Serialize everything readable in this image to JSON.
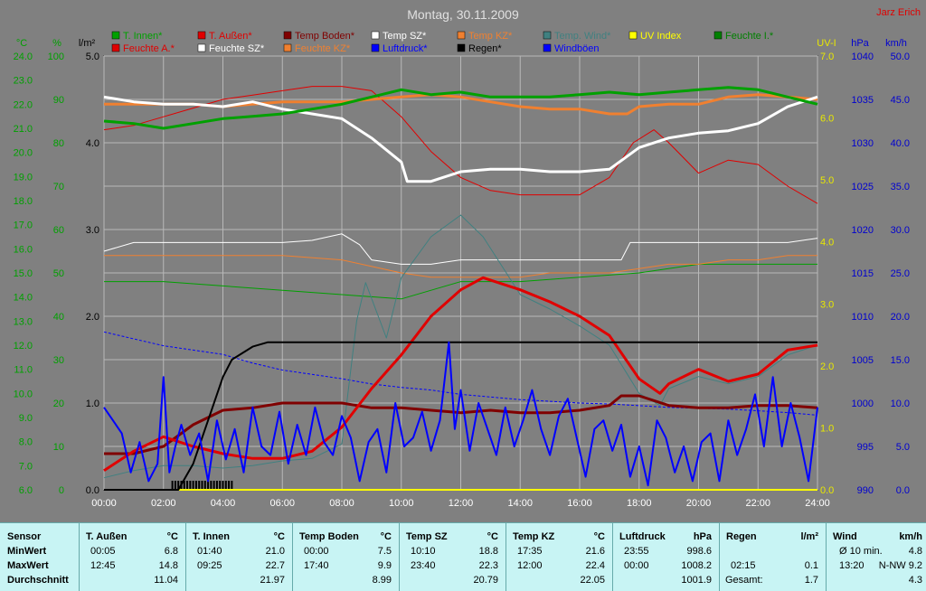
{
  "chart_data": {
    "type": "line",
    "title": "Montag, 30.11.2009",
    "author": "Jarz Erich",
    "colors": {
      "bg": "#808080",
      "grid": "#b8b8b8"
    },
    "axes": {
      "temp": {
        "unit": "°C",
        "min": 6.0,
        "max": 24.0,
        "ticks": [
          "6.0",
          "7.0",
          "8.0",
          "9.0",
          "10.0",
          "11.0",
          "12.0",
          "13.0",
          "14.0",
          "15.0",
          "16.0",
          "17.0",
          "18.0",
          "19.0",
          "20.0",
          "21.0",
          "22.0",
          "23.0",
          "24.0"
        ],
        "color": "#00a000"
      },
      "hum": {
        "unit": "%",
        "min": 0,
        "max": 100,
        "ticks": [
          "0",
          "10",
          "20",
          "30",
          "40",
          "50",
          "60",
          "70",
          "80",
          "90",
          "100"
        ],
        "color": "#00a000"
      },
      "rain": {
        "unit": "l/m²",
        "min": 0,
        "max": 5,
        "ticks": [
          "0.0",
          "1.0",
          "2.0",
          "3.0",
          "4.0",
          "5.0"
        ],
        "color": "#000000"
      },
      "uv": {
        "unit": "UV-I",
        "min": 0,
        "max": 7,
        "ticks": [
          "0.0",
          "1.0",
          "2.0",
          "3.0",
          "4.0",
          "5.0",
          "6.0",
          "7.0"
        ],
        "color": "#e8e800"
      },
      "press": {
        "unit": "hPa",
        "min": 990,
        "max": 1040,
        "ticks": [
          "990",
          "995",
          "1000",
          "1005",
          "1010",
          "1015",
          "1020",
          "1025",
          "1030",
          "1035",
          "1040"
        ],
        "color": "#0000d0"
      },
      "wind": {
        "unit": "km/h",
        "min": 0,
        "max": 50,
        "ticks": [
          "0.0",
          "5.0",
          "10.0",
          "15.0",
          "20.0",
          "25.0",
          "30.0",
          "35.0",
          "40.0",
          "45.0",
          "50.0"
        ],
        "color": "#0000d0"
      },
      "x_ticks": [
        "00:00",
        "02:00",
        "04:00",
        "06:00",
        "08:00",
        "10:00",
        "12:00",
        "14:00",
        "16:00",
        "18:00",
        "20:00",
        "22:00",
        "24:00"
      ]
    },
    "legend": [
      {
        "name": "T. Innen*",
        "color": "#00a000"
      },
      {
        "name": "T. Außen*",
        "color": "#e00000"
      },
      {
        "name": "Temp Boden*",
        "color": "#800000"
      },
      {
        "name": "Temp SZ*",
        "color": "#ffffff"
      },
      {
        "name": "Temp KZ*",
        "color": "#f08030"
      },
      {
        "name": "Temp. Wind*",
        "color": "#408080"
      },
      {
        "name": "UV Index",
        "color": "#ffff00"
      },
      {
        "name": "Feuchte I.*",
        "color": "#008000"
      },
      {
        "name": "Feuchte A.*",
        "color": "#e00000"
      },
      {
        "name": "Feuchte SZ*",
        "color": "#ffffff"
      },
      {
        "name": "Feuchte KZ*",
        "color": "#f08030"
      },
      {
        "name": "Luftdruck*",
        "color": "#0000ff"
      },
      {
        "name": "Regen*",
        "color": "#000000"
      },
      {
        "name": "Windböen",
        "color": "#0000ff"
      }
    ],
    "series": [
      {
        "name": "T. Innen*",
        "axis": "temp",
        "color": "#00a000",
        "width": 3,
        "x": [
          0,
          1,
          2,
          3,
          4,
          5,
          6,
          7,
          8,
          9,
          10,
          11,
          12,
          13,
          14,
          15,
          16,
          17,
          18,
          19,
          20,
          21,
          22,
          23,
          24
        ],
        "y": [
          21.3,
          21.2,
          21.0,
          21.2,
          21.4,
          21.5,
          21.6,
          21.8,
          22.0,
          22.3,
          22.6,
          22.4,
          22.5,
          22.3,
          22.3,
          22.3,
          22.4,
          22.5,
          22.4,
          22.5,
          22.6,
          22.7,
          22.6,
          22.3,
          22.0
        ]
      },
      {
        "name": "T. Außen*",
        "axis": "temp",
        "color": "#e00000",
        "width": 3,
        "x": [
          0,
          1,
          2,
          3,
          4,
          5,
          6,
          7,
          8,
          9,
          10,
          11,
          12,
          12.75,
          14,
          15,
          16,
          17,
          18,
          18.7,
          19,
          20,
          21,
          22,
          23,
          24
        ],
        "y": [
          6.8,
          7.6,
          8.2,
          7.8,
          7.5,
          7.3,
          7.3,
          7.6,
          8.6,
          10.2,
          11.6,
          13.2,
          14.3,
          14.8,
          14.3,
          13.8,
          13.2,
          12.4,
          10.6,
          10.0,
          10.4,
          11.0,
          10.5,
          10.8,
          11.8,
          12.0
        ]
      },
      {
        "name": "Temp Boden*",
        "axis": "temp",
        "color": "#800000",
        "width": 3,
        "x": [
          0,
          1,
          2,
          3,
          4,
          5,
          6,
          7,
          8,
          9,
          10,
          11,
          12,
          13,
          14,
          15,
          16,
          17,
          17.4,
          18,
          19,
          20,
          21,
          22,
          23,
          24
        ],
        "y": [
          7.5,
          7.5,
          7.8,
          8.7,
          9.3,
          9.4,
          9.6,
          9.6,
          9.6,
          9.4,
          9.4,
          9.3,
          9.2,
          9.3,
          9.2,
          9.2,
          9.3,
          9.5,
          9.9,
          9.9,
          9.5,
          9.4,
          9.4,
          9.5,
          9.5,
          9.4
        ]
      },
      {
        "name": "Temp SZ*",
        "axis": "temp",
        "color": "#ffffff",
        "width": 3,
        "x": [
          0,
          1,
          2,
          3,
          4,
          5,
          6,
          7,
          8,
          9,
          10,
          10.2,
          11,
          12,
          13,
          14,
          15,
          16,
          17,
          18,
          19,
          20,
          21,
          22,
          23,
          24
        ],
        "y": [
          22.3,
          22.1,
          22.0,
          22.0,
          21.9,
          22.1,
          21.8,
          21.6,
          21.4,
          20.6,
          19.6,
          18.8,
          18.8,
          19.2,
          19.3,
          19.3,
          19.2,
          19.2,
          19.3,
          20.2,
          20.6,
          20.8,
          20.9,
          21.2,
          21.9,
          22.3
        ]
      },
      {
        "name": "Temp KZ*",
        "axis": "temp",
        "color": "#f08030",
        "width": 3,
        "x": [
          0,
          1,
          2,
          3,
          4,
          5,
          6,
          7,
          8,
          9,
          10,
          11,
          12,
          13,
          14,
          15,
          16,
          17,
          17.6,
          18,
          19,
          20,
          21,
          22,
          23,
          24
        ],
        "y": [
          22.0,
          22.0,
          22.0,
          22.0,
          21.9,
          22.0,
          22.1,
          22.1,
          22.1,
          22.2,
          22.3,
          22.4,
          22.3,
          22.1,
          21.9,
          21.8,
          21.8,
          21.6,
          21.6,
          21.9,
          22.0,
          22.0,
          22.3,
          22.4,
          22.3,
          22.2
        ]
      },
      {
        "name": "Temp. Wind*",
        "axis": "temp",
        "color": "#408080",
        "width": 1,
        "x": [
          0,
          1,
          2,
          3,
          4,
          5,
          6,
          7,
          8,
          8.5,
          8.8,
          9.5,
          10,
          11,
          12,
          12.75,
          14,
          15,
          16,
          17,
          18,
          18.7,
          19,
          20,
          21,
          22,
          23,
          24
        ],
        "y": [
          6.5,
          6.8,
          7.0,
          7.0,
          6.9,
          7.0,
          7.2,
          7.3,
          7.9,
          13.0,
          14.6,
          12.3,
          14.8,
          16.5,
          17.4,
          16.5,
          14.1,
          13.5,
          12.8,
          12.0,
          10.0,
          9.5,
          10.2,
          10.7,
          10.4,
          10.7,
          11.6,
          12.0
        ]
      },
      {
        "name": "Feuchte I.*",
        "axis": "hum",
        "color": "#00a000",
        "width": 1,
        "x": [
          0,
          2,
          4,
          6,
          8,
          10,
          12,
          14,
          16,
          18,
          20,
          22,
          24
        ],
        "y": [
          48,
          48,
          47,
          46,
          45,
          44,
          48,
          48,
          49,
          50,
          52,
          52,
          52
        ]
      },
      {
        "name": "Feuchte A.*",
        "axis": "hum",
        "color": "#e00000",
        "width": 1,
        "x": [
          0,
          1,
          2,
          3,
          4,
          5,
          6,
          7,
          8,
          9,
          10,
          11,
          12,
          13,
          14,
          15,
          16,
          17,
          17.8,
          18.5,
          19,
          20,
          21,
          22,
          23,
          24
        ],
        "y": [
          83,
          84,
          86,
          88,
          90,
          91,
          92,
          93,
          93,
          92,
          86,
          78,
          72,
          69,
          68,
          68,
          68,
          72,
          80,
          83,
          80,
          73,
          76,
          75,
          70,
          66
        ]
      },
      {
        "name": "Feuchte SZ*",
        "axis": "hum",
        "color": "#ffffff",
        "width": 1,
        "x": [
          0,
          1,
          2,
          3,
          4,
          5,
          6,
          7,
          8,
          8.6,
          9,
          10,
          11,
          12,
          13,
          14,
          15,
          16,
          17,
          17.4,
          17.7,
          18,
          19,
          20,
          21,
          22,
          23,
          24
        ],
        "y": [
          55,
          57,
          57,
          57,
          57,
          57,
          57,
          57.5,
          59,
          56.5,
          53,
          52,
          52,
          53,
          53,
          53,
          53,
          53,
          53,
          53,
          57,
          57,
          57,
          57,
          57,
          57,
          57,
          58
        ]
      },
      {
        "name": "Feuchte KZ*",
        "axis": "hum",
        "color": "#f08030",
        "width": 1,
        "x": [
          0,
          2,
          4,
          6,
          8,
          10,
          11,
          12,
          13,
          14,
          15,
          16,
          17,
          18,
          19,
          20,
          21,
          22,
          23,
          24
        ],
        "y": [
          54,
          54,
          54,
          54,
          53,
          50,
          49,
          49,
          49,
          49,
          50,
          50,
          50,
          51,
          52,
          52,
          53,
          53,
          54,
          54
        ]
      },
      {
        "name": "Luftdruck*",
        "axis": "press",
        "color": "#0000ff",
        "width": 1,
        "dashed": true,
        "x": [
          0,
          1,
          2,
          3,
          4,
          5,
          6,
          7,
          8,
          9,
          10,
          11,
          12,
          13,
          14,
          15,
          16,
          17,
          18,
          19,
          20,
          21,
          22,
          23,
          24
        ],
        "y": [
          1008.2,
          1007.4,
          1006.6,
          1006.1,
          1005.6,
          1004.6,
          1003.8,
          1003.3,
          1002.8,
          1002.2,
          1001.8,
          1001.5,
          1001.0,
          1000.7,
          1000.4,
          1000.2,
          1000.0,
          999.9,
          999.7,
          999.5,
          999.4,
          999.3,
          999.1,
          998.9,
          998.6
        ]
      },
      {
        "name": "Regen*",
        "axis": "rain",
        "color": "#000000",
        "width": 2,
        "x": [
          0,
          2.5,
          3,
          3.5,
          4,
          4.3,
          5,
          5.5,
          6,
          7,
          8,
          10,
          12,
          14,
          16,
          18,
          20,
          22,
          24
        ],
        "y": [
          0,
          0,
          0.3,
          0.8,
          1.3,
          1.5,
          1.65,
          1.7,
          1.7,
          1.7,
          1.7,
          1.7,
          1.7,
          1.7,
          1.7,
          1.7,
          1.7,
          1.7,
          1.7
        ]
      },
      {
        "name": "UV Index",
        "axis": "uv",
        "color": "#ffff00",
        "width": 2,
        "x": [
          0,
          24
        ],
        "y": [
          0,
          0
        ]
      },
      {
        "name": "Windböen",
        "axis": "wind",
        "color": "#0000ff",
        "width": 2,
        "x": [
          0,
          0.3,
          0.6,
          0.9,
          1.2,
          1.5,
          1.8,
          2.0,
          2.2,
          2.4,
          2.6,
          2.9,
          3.2,
          3.5,
          3.8,
          4.1,
          4.4,
          4.7,
          5.0,
          5.3,
          5.6,
          5.9,
          6.2,
          6.5,
          6.8,
          7.1,
          7.4,
          7.7,
          8.0,
          8.3,
          8.6,
          8.9,
          9.2,
          9.5,
          9.8,
          10.1,
          10.4,
          10.7,
          11.0,
          11.3,
          11.6,
          11.8,
          12.0,
          12.3,
          12.6,
          12.9,
          13.2,
          13.5,
          13.8,
          14.1,
          14.4,
          14.7,
          15.0,
          15.3,
          15.6,
          15.9,
          16.2,
          16.5,
          16.8,
          17.1,
          17.4,
          17.7,
          18.0,
          18.3,
          18.6,
          18.9,
          19.2,
          19.5,
          19.8,
          20.1,
          20.4,
          20.7,
          21.0,
          21.3,
          21.6,
          21.9,
          22.2,
          22.5,
          22.8,
          23.1,
          23.4,
          23.7,
          24.0
        ],
        "y": [
          9.5,
          8.0,
          6.5,
          2.0,
          5.5,
          1.0,
          3.0,
          13.0,
          2.0,
          5.0,
          7.5,
          4.0,
          6.5,
          1.0,
          8.0,
          3.5,
          7.0,
          2.0,
          9.5,
          5.0,
          4.0,
          9.0,
          3.0,
          7.5,
          4.0,
          9.5,
          5.5,
          4.0,
          8.5,
          6.0,
          1.0,
          5.5,
          7.0,
          2.0,
          10.0,
          5.0,
          6.0,
          9.0,
          4.5,
          8.0,
          17.0,
          7.0,
          11.5,
          4.5,
          10.0,
          7.0,
          4.0,
          9.5,
          5.0,
          8.0,
          11.5,
          7.0,
          4.0,
          8.5,
          10.5,
          6.0,
          1.5,
          7.0,
          8.0,
          4.5,
          7.5,
          1.5,
          5.0,
          0.5,
          8.0,
          6.0,
          2.0,
          5.0,
          1.0,
          5.5,
          6.5,
          1.0,
          8.0,
          4.0,
          7.0,
          11.0,
          5.0,
          13.0,
          5.0,
          10.0,
          6.0,
          1.0,
          9.5
        ]
      }
    ]
  },
  "stats": {
    "columns": [
      {
        "header": "Sensor",
        "unit": "",
        "min_time": "",
        "min_val": "",
        "max_time": "",
        "max_val": "",
        "avg": "",
        "labels": [
          "MinWert",
          "MaxWert",
          "Durchschnitt"
        ]
      },
      {
        "header": "T. Außen",
        "unit": "°C",
        "min_time": "00:05",
        "min_val": "6.8",
        "max_time": "12:45",
        "max_val": "14.8",
        "avg": "11.04"
      },
      {
        "header": "T. Innen",
        "unit": "°C",
        "min_time": "01:40",
        "min_val": "21.0",
        "max_time": "09:25",
        "max_val": "22.7",
        "avg": "21.97"
      },
      {
        "header": "Temp Boden",
        "unit": "°C",
        "min_time": "00:00",
        "min_val": "7.5",
        "max_time": "17:40",
        "max_val": "9.9",
        "avg": "8.99"
      },
      {
        "header": "Temp SZ",
        "unit": "°C",
        "min_time": "10:10",
        "min_val": "18.8",
        "max_time": "23:40",
        "max_val": "22.3",
        "avg": "20.79"
      },
      {
        "header": "Temp KZ",
        "unit": "°C",
        "min_time": "17:35",
        "min_val": "21.6",
        "max_time": "12:00",
        "max_val": "22.4",
        "avg": "22.05"
      },
      {
        "header": "Luftdruck",
        "unit": "hPa",
        "min_time": "23:55",
        "min_val": "998.6",
        "max_time": "00:00",
        "max_val": "1008.2",
        "avg": "1001.9"
      },
      {
        "header": "Regen",
        "unit": "l/m²",
        "min_time": "",
        "min_val": "",
        "max_time": "02:15",
        "max_val": "0.1",
        "avg_label": "Gesamt:",
        "avg": "1.7"
      },
      {
        "header": "Wind",
        "unit": "km/h",
        "min_time": "Ø 10 min.",
        "min_val": "4.8",
        "max_time": "13:20",
        "max_val": "N-NW 9.2",
        "avg": "4.3"
      }
    ]
  }
}
